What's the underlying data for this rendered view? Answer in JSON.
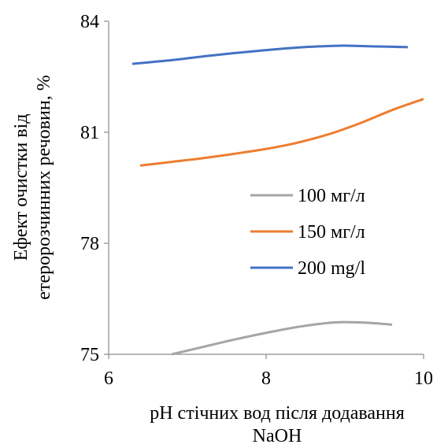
{
  "chart_data": {
    "type": "line",
    "title": "",
    "xlabel": [
      "pH стічних вод після додавання",
      "NaOH"
    ],
    "ylabel": [
      "Ефект очистки від",
      "етеророзчинних речовин, %"
    ],
    "xlim": [
      6,
      10
    ],
    "ylim": [
      75,
      84
    ],
    "x_ticks": [
      "6",
      "8",
      "10"
    ],
    "y_ticks": [
      "75",
      "78",
      "81",
      "84"
    ],
    "grid": false,
    "legend_position": "center-right",
    "series": [
      {
        "name": "100 мг/л",
        "color": "#a5a5a5",
        "points": [
          [
            6.8,
            75.0
          ],
          [
            7.2,
            75.2
          ],
          [
            7.6,
            75.4
          ],
          [
            8.0,
            75.58
          ],
          [
            8.4,
            75.74
          ],
          [
            8.8,
            75.85
          ],
          [
            9.0,
            75.87
          ],
          [
            9.3,
            75.85
          ],
          [
            9.6,
            75.8
          ]
        ]
      },
      {
        "name": "150 мг/л",
        "color": "#ed7d31",
        "points": [
          [
            6.4,
            80.1
          ],
          [
            6.8,
            80.2
          ],
          [
            7.2,
            80.3
          ],
          [
            7.6,
            80.42
          ],
          [
            8.0,
            80.55
          ],
          [
            8.4,
            80.72
          ],
          [
            8.8,
            80.95
          ],
          [
            9.2,
            81.25
          ],
          [
            9.6,
            81.6
          ],
          [
            10.0,
            81.9
          ]
        ]
      },
      {
        "name": "200 mg/l",
        "color": "#4472c4",
        "points": [
          [
            6.3,
            82.85
          ],
          [
            6.8,
            82.95
          ],
          [
            7.2,
            83.05
          ],
          [
            7.6,
            83.14
          ],
          [
            8.0,
            83.22
          ],
          [
            8.4,
            83.29
          ],
          [
            8.8,
            83.33
          ],
          [
            9.0,
            83.34
          ],
          [
            9.4,
            83.32
          ],
          [
            9.8,
            83.3
          ]
        ]
      }
    ]
  }
}
